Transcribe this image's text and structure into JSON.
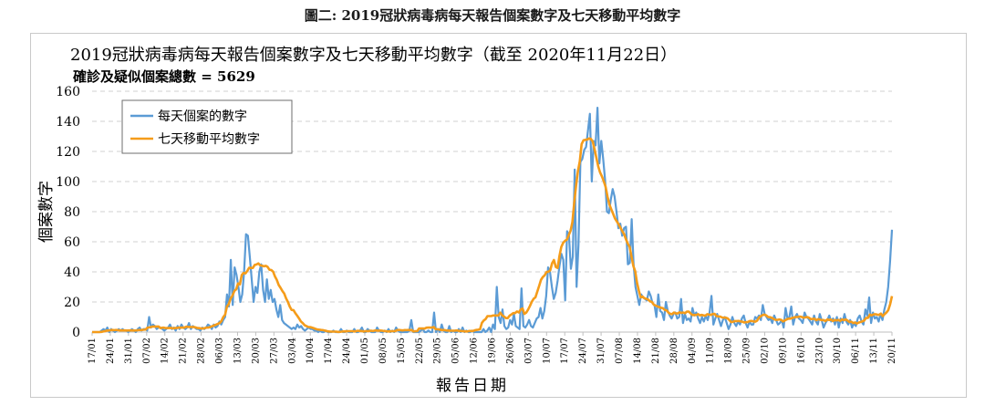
{
  "caption": "圖二: 2019冠狀病毒病每天報告個案數字及七天移動平均數字",
  "chart_data": {
    "type": "line",
    "title": "2019冠狀病毒病每天報告個案數字及七天移動平均數字（截至 2020年11月22日）",
    "subtitle": "確診及疑似個案總數 = 5629",
    "xlabel": "報告日期",
    "ylabel": "個案數字",
    "ylim": [
      0,
      160
    ],
    "yticks": [
      0,
      20,
      40,
      60,
      80,
      100,
      120,
      140,
      160
    ],
    "grid": true,
    "legend_position": "top-left",
    "x_tick_labels": [
      "17/01",
      "24/01",
      "31/01",
      "07/02",
      "14/02",
      "21/02",
      "28/02",
      "06/03",
      "13/03",
      "20/03",
      "27/03",
      "03/04",
      "10/04",
      "17/04",
      "24/04",
      "01/05",
      "08/05",
      "15/05",
      "22/05",
      "29/05",
      "05/06",
      "12/06",
      "19/06",
      "26/06",
      "03/07",
      "10/07",
      "17/07",
      "24/07",
      "31/07",
      "07/08",
      "14/08",
      "21/08",
      "28/08",
      "04/09",
      "11/09",
      "18/09",
      "25/09",
      "02/10",
      "09/10",
      "16/10",
      "23/10",
      "30/10",
      "06/11",
      "13/11",
      "20/11"
    ],
    "colors": {
      "daily": "#5b9bd5",
      "avg": "#f59c1a",
      "grid": "#d0d0d0"
    },
    "series": [
      {
        "name": "每天個案的數字",
        "color": "#5b9bd5",
        "values": [
          0,
          0,
          0,
          0,
          0,
          1,
          2,
          1,
          3,
          0,
          2,
          1,
          0,
          1,
          2,
          1,
          2,
          1,
          1,
          0,
          1,
          2,
          1,
          0,
          2,
          3,
          1,
          2,
          2,
          1,
          10,
          3,
          5,
          4,
          2,
          3,
          3,
          2,
          1,
          2,
          3,
          5,
          2,
          3,
          1,
          4,
          2,
          5,
          3,
          2,
          3,
          6,
          2,
          4,
          3,
          2,
          2,
          1,
          3,
          2,
          3,
          5,
          4,
          2,
          5,
          3,
          4,
          7,
          5,
          8,
          10,
          25,
          17,
          48,
          18,
          43,
          38,
          30,
          20,
          25,
          40,
          65,
          64,
          50,
          35,
          20,
          30,
          26,
          40,
          45,
          28,
          20,
          35,
          22,
          28,
          20,
          22,
          15,
          10,
          18,
          8,
          6,
          5,
          4,
          3,
          2,
          3,
          2,
          5,
          3,
          4,
          2,
          1,
          2,
          3,
          2,
          2,
          1,
          1,
          0,
          1,
          0,
          0,
          1,
          0,
          0,
          0,
          1,
          0,
          0,
          0,
          2,
          0,
          0,
          1,
          0,
          0,
          0,
          2,
          0,
          0,
          1,
          3,
          0,
          0,
          2,
          1,
          0,
          0,
          0,
          3,
          1,
          0,
          0,
          1,
          0,
          2,
          0,
          1,
          0,
          3,
          1,
          0,
          0,
          0,
          0,
          0,
          1,
          8,
          0,
          0,
          0,
          0,
          1,
          2,
          0,
          0,
          1,
          0,
          0,
          13,
          0,
          2,
          0,
          5,
          1,
          0,
          0,
          4,
          0,
          1,
          0,
          0,
          2,
          0,
          3,
          0,
          1,
          0,
          0,
          1,
          0,
          0,
          0,
          0,
          0,
          2,
          0,
          1,
          3,
          0,
          5,
          2,
          30,
          10,
          6,
          15,
          4,
          2,
          3,
          8,
          5,
          12,
          4,
          3,
          2,
          29,
          4,
          3,
          5,
          8,
          4,
          3,
          6,
          9,
          10,
          16,
          9,
          14,
          24,
          43,
          40,
          30,
          22,
          26,
          34,
          44,
          52,
          48,
          21,
          67,
          64,
          42,
          50,
          108,
          30,
          58,
          113,
          115,
          121,
          123,
          134,
          145,
          100,
          127,
          124,
          149,
          112,
          127,
          115,
          101,
          80,
          79,
          88,
          95,
          90,
          80,
          69,
          72,
          64,
          69,
          70,
          45,
          46,
          75,
          45,
          30,
          24,
          18,
          25,
          23,
          22,
          21,
          27,
          24,
          19,
          18,
          10,
          25,
          14,
          13,
          8,
          20,
          14,
          11,
          9,
          12,
          13,
          9,
          10,
          22,
          6,
          12,
          8,
          9,
          7,
          16,
          11,
          13,
          9,
          6,
          10,
          7,
          11,
          8,
          13,
          24,
          5,
          9,
          12,
          8,
          4,
          8,
          10,
          6,
          2,
          5,
          10,
          6,
          4,
          7,
          5,
          9,
          11,
          6,
          3,
          7,
          5,
          5,
          10,
          9,
          11,
          8,
          18,
          12,
          10,
          8,
          9,
          6,
          11,
          8,
          5,
          6,
          8,
          3,
          16,
          9,
          10,
          17,
          5,
          10,
          12,
          9,
          8,
          6,
          13,
          10,
          9,
          7,
          5,
          11,
          7,
          5,
          12,
          8,
          3,
          6,
          8,
          11,
          7,
          9,
          5,
          10,
          3,
          9,
          6,
          12,
          7,
          5,
          8,
          3,
          6,
          4,
          9,
          11,
          7,
          5,
          15,
          11,
          23,
          6,
          13,
          9,
          10,
          7,
          12,
          8,
          15,
          20,
          30,
          47,
          68
        ]
      },
      {
        "name": "七天移動平均數字",
        "color": "#f59c1a",
        "values": [
          0.0,
          0.0,
          0.0,
          0.0,
          0.0,
          0.1,
          0.4,
          0.6,
          1.0,
          1.0,
          1.3,
          1.4,
          1.3,
          1.4,
          1.3,
          1.1,
          1.1,
          1.1,
          1.1,
          1.0,
          1.1,
          1.1,
          1.1,
          1.0,
          1.1,
          1.3,
          1.3,
          1.4,
          1.6,
          1.7,
          3.0,
          3.1,
          3.4,
          3.7,
          3.6,
          3.7,
          3.7,
          2.6,
          2.9,
          2.9,
          2.6,
          2.7,
          2.7,
          2.7,
          2.4,
          2.7,
          2.7,
          3.0,
          2.9,
          3.0,
          3.0,
          3.6,
          3.4,
          3.4,
          3.3,
          3.4,
          3.1,
          2.7,
          2.6,
          2.4,
          2.4,
          2.6,
          3.0,
          3.0,
          3.4,
          3.9,
          4.4,
          4.9,
          5.4,
          6.0,
          7.3,
          10.0,
          11.6,
          17.0,
          18.7,
          22.3,
          24.3,
          27.3,
          28.4,
          32.3,
          31.7,
          37.9,
          39.3,
          39.0,
          40.6,
          42.7,
          42.6,
          42.6,
          44.6,
          44.9,
          45.6,
          44.3,
          44.1,
          43.7,
          44.0,
          43.3,
          41.4,
          41.2,
          40.1,
          36.9,
          34.6,
          31.3,
          29.4,
          27.3,
          25.6,
          22.4,
          20.0,
          16.9,
          14.7,
          14.6,
          12.6,
          10.9,
          9.1,
          7.1,
          6.0,
          4.6,
          4.0,
          3.4,
          3.3,
          3.0,
          2.6,
          2.1,
          1.7,
          1.6,
          1.4,
          1.3,
          1.0,
          0.7,
          0.4,
          0.3,
          0.3,
          0.3,
          0.3,
          0.1,
          0.1,
          0.3,
          0.4,
          0.4,
          0.6,
          0.6,
          0.6,
          0.6,
          0.4,
          0.6,
          0.9,
          0.7,
          0.7,
          0.4,
          0.6,
          0.6,
          0.7,
          0.9,
          0.7,
          1.0,
          1.0,
          0.9,
          1.0,
          0.9,
          0.7,
          0.6,
          0.4,
          0.4,
          0.6,
          0.6,
          0.6,
          1.3,
          1.4,
          1.3,
          1.1,
          1.3,
          1.3,
          1.4,
          1.3,
          1.3,
          0.4,
          0.6,
          0.6,
          2.4,
          2.4,
          2.4,
          2.3,
          2.9,
          3.0,
          3.0,
          3.0,
          3.3,
          1.9,
          1.9,
          1.7,
          1.4,
          1.3,
          1.3,
          1.0,
          1.0,
          0.9,
          0.9,
          0.9,
          1.0,
          1.0,
          0.7,
          0.7,
          0.6,
          0.4,
          0.4,
          0.7,
          0.7,
          0.7,
          1.1,
          1.4,
          1.6,
          1.9,
          6.1,
          7.7,
          8.6,
          10.6,
          10.6,
          10.6,
          11.0,
          11.0,
          11.0,
          11.0,
          12.9,
          11.1,
          10.3,
          9.3,
          9.3,
          10.9,
          11.7,
          12.6,
          12.6,
          13.7,
          13.0,
          15.0,
          15.7,
          12.1,
          12.9,
          14.9,
          17.3,
          20.1,
          22.1,
          23.1,
          26.9,
          30.7,
          34.7,
          36.6,
          37.7,
          39.9,
          40.1,
          41.0,
          45.7,
          47.9,
          43.3,
          42.6,
          50.6,
          56.6,
          59.3,
          60.6,
          61.4,
          64.3,
          67.3,
          73.1,
          86.1,
          97.4,
          107.0,
          113.4,
          124.9,
          127.4,
          127.7,
          127.9,
          128.6,
          128.3,
          126.6,
          121.4,
          115.7,
          110.0,
          106.0,
          103.4,
          100.1,
          96.4,
          90.0,
          84.9,
          81.7,
          78.7,
          75.6,
          73.6,
          71.6,
          69.3,
          67.1,
          65.0,
          61.6,
          58.7,
          56.6,
          50.1,
          43.9,
          40.4,
          32.7,
          27.4,
          23.0,
          23.6,
          22.4,
          22.1,
          21.6,
          20.4,
          20.1,
          18.3,
          17.6,
          17.1,
          16.6,
          16.1,
          15.9,
          14.7,
          14.4,
          12.9,
          12.1,
          12.0,
          13.0,
          12.4,
          12.4,
          13.1,
          12.7,
          13.0,
          12.6,
          13.6,
          13.6,
          12.4,
          11.3,
          11.4,
          11.3,
          11.9,
          11.1,
          11.4,
          11.1,
          10.9,
          11.9,
          11.6,
          11.4,
          12.0,
          12.1,
          10.6,
          10.4,
          10.3,
          9.7,
          9.6,
          9.6,
          9.1,
          7.9,
          6.6,
          6.9,
          7.3,
          7.3,
          7.4,
          7.1,
          6.9,
          6.4,
          6.6,
          6.7,
          7.3,
          7.4,
          7.1,
          6.9,
          7.6,
          9.6,
          10.6,
          11.3,
          11.6,
          11.0,
          10.0,
          9.9,
          9.4,
          8.7,
          8.1,
          8.1,
          8.4,
          8.1,
          7.1,
          7.7,
          8.4,
          8.9,
          8.9,
          9.4,
          9.7,
          10.0,
          10.0,
          10.3,
          10.1,
          9.6,
          9.7,
          10.0,
          9.6,
          8.7,
          8.7,
          8.9,
          7.9,
          8.6,
          8.3,
          7.9,
          8.0,
          7.3,
          8.4,
          8.0,
          8.3,
          7.4,
          8.0,
          7.7,
          8.1,
          7.4,
          8.4,
          7.9,
          8.4,
          7.6,
          6.7,
          6.9,
          6.0,
          6.4,
          5.7,
          6.3,
          6.7,
          7.1,
          7.7,
          9.4,
          9.4,
          11.6,
          11.1,
          11.7,
          11.9,
          11.6,
          11.4,
          12.3,
          10.6,
          11.9,
          13.0,
          14.6,
          18.4,
          23.9
        ]
      }
    ]
  }
}
